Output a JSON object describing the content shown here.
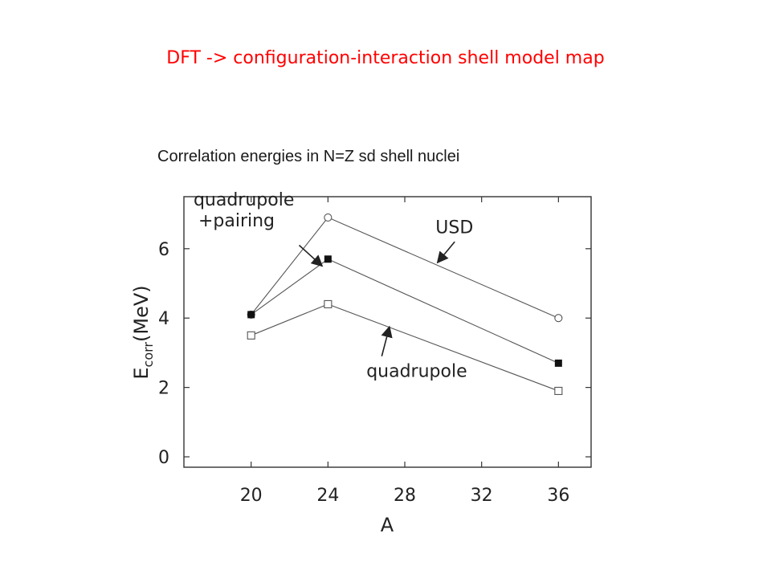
{
  "slide": {
    "title": "DFT -> configuration-interaction shell model map",
    "subtitle": "Correlation energies in N=Z sd shell nuclei"
  },
  "colors": {
    "title": "#ff0000",
    "series": "#555555",
    "axis": "#333333",
    "text": "#222222"
  },
  "chart_data": {
    "type": "line",
    "title": "",
    "xlabel": "A",
    "ylabel_main": "E",
    "ylabel_sub": "corr",
    "ylabel_unit": "(MeV)",
    "xlim": [
      16.5,
      37.7
    ],
    "ylim": [
      -0.3,
      7.5
    ],
    "xticks": [
      20,
      24,
      28,
      32,
      36
    ],
    "yticks": [
      0,
      2,
      4,
      6
    ],
    "grid": false,
    "series": [
      {
        "name": "USD",
        "marker": "open-circle",
        "x": [
          20,
          24,
          36
        ],
        "y": [
          4.1,
          6.9,
          4.0
        ]
      },
      {
        "name": "quadrupole +pairing",
        "marker": "filled-square",
        "x": [
          20,
          24,
          36
        ],
        "y": [
          4.1,
          5.7,
          2.7
        ]
      },
      {
        "name": "quadrupole",
        "marker": "open-square",
        "x": [
          20,
          24,
          36
        ],
        "y": [
          3.5,
          4.4,
          1.9
        ]
      }
    ],
    "annotations": [
      {
        "lines": [
          "quadrupole",
          "+pairing"
        ],
        "series": 1,
        "text_x": 17.0,
        "text_y": 7.25,
        "arrow_from": [
          22.5,
          6.1
        ],
        "arrow_to": [
          23.7,
          5.5
        ]
      },
      {
        "lines": [
          "USD"
        ],
        "series": 0,
        "text_x": 29.6,
        "text_y": 6.45,
        "arrow_from": [
          30.6,
          6.2
        ],
        "arrow_to": [
          29.7,
          5.6
        ]
      },
      {
        "lines": [
          "quadrupole"
        ],
        "series": 2,
        "text_x": 26.0,
        "text_y": 2.3,
        "arrow_from": [
          26.8,
          2.9
        ],
        "arrow_to": [
          27.2,
          3.75
        ]
      }
    ]
  }
}
